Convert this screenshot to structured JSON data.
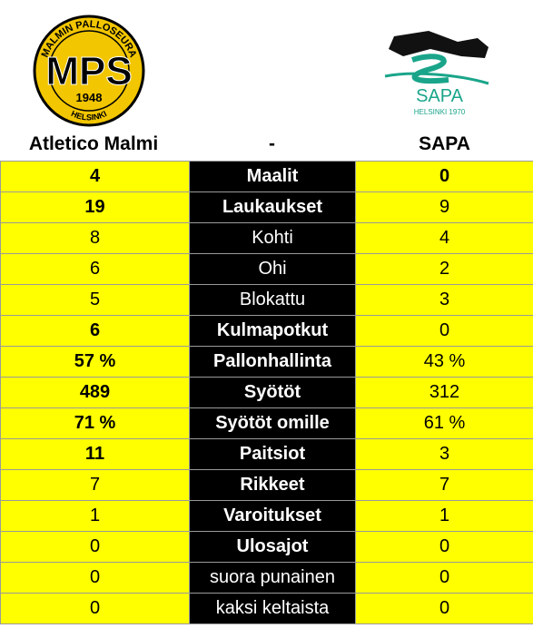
{
  "logos": {
    "home": {
      "arc_text": "MALMIN PALLOSEURA",
      "letters": "MPS",
      "year": "1948",
      "city": "HELSINKI"
    },
    "away": {
      "name": "SAPA",
      "sub": "HELSINKI 1970"
    }
  },
  "header": {
    "home_team": "Atletico Malmi",
    "separator": "-",
    "away_team": "SAPA"
  },
  "colors": {
    "team_cells": "#ffff00",
    "label_cells": "#000000",
    "label_text": "#ffffff",
    "sapa_green": "#1aa58a"
  },
  "rows": [
    {
      "label": "Maalit",
      "home": "4",
      "away": "0",
      "label_bold": true,
      "home_bold": true,
      "away_bold": true
    },
    {
      "label": "Laukaukset",
      "home": "19",
      "away": "9",
      "label_bold": true,
      "home_bold": true,
      "away_bold": false
    },
    {
      "label": "Kohti",
      "home": "8",
      "away": "4",
      "label_bold": false,
      "home_bold": false,
      "away_bold": false
    },
    {
      "label": "Ohi",
      "home": "6",
      "away": "2",
      "label_bold": false,
      "home_bold": false,
      "away_bold": false
    },
    {
      "label": "Blokattu",
      "home": "5",
      "away": "3",
      "label_bold": false,
      "home_bold": false,
      "away_bold": false
    },
    {
      "label": "Kulmapotkut",
      "home": "6",
      "away": "0",
      "label_bold": true,
      "home_bold": true,
      "away_bold": false
    },
    {
      "label": "Pallonhallinta",
      "home": "57 %",
      "away": "43 %",
      "label_bold": true,
      "home_bold": true,
      "away_bold": false
    },
    {
      "label": "Syötöt",
      "home": "489",
      "away": "312",
      "label_bold": true,
      "home_bold": true,
      "away_bold": false
    },
    {
      "label": "Syötöt omille",
      "home": "71 %",
      "away": "61 %",
      "label_bold": true,
      "home_bold": true,
      "away_bold": false
    },
    {
      "label": "Paitsiot",
      "home": "11",
      "away": "3",
      "label_bold": true,
      "home_bold": true,
      "away_bold": false
    },
    {
      "label": "Rikkeet",
      "home": "7",
      "away": "7",
      "label_bold": true,
      "home_bold": false,
      "away_bold": false
    },
    {
      "label": "Varoitukset",
      "home": "1",
      "away": "1",
      "label_bold": true,
      "home_bold": false,
      "away_bold": false
    },
    {
      "label": "Ulosajot",
      "home": "0",
      "away": "0",
      "label_bold": true,
      "home_bold": false,
      "away_bold": false
    },
    {
      "label": "suora punainen",
      "home": "0",
      "away": "0",
      "label_bold": false,
      "home_bold": false,
      "away_bold": false
    },
    {
      "label": "kaksi keltaista",
      "home": "0",
      "away": "0",
      "label_bold": false,
      "home_bold": false,
      "away_bold": false
    }
  ]
}
